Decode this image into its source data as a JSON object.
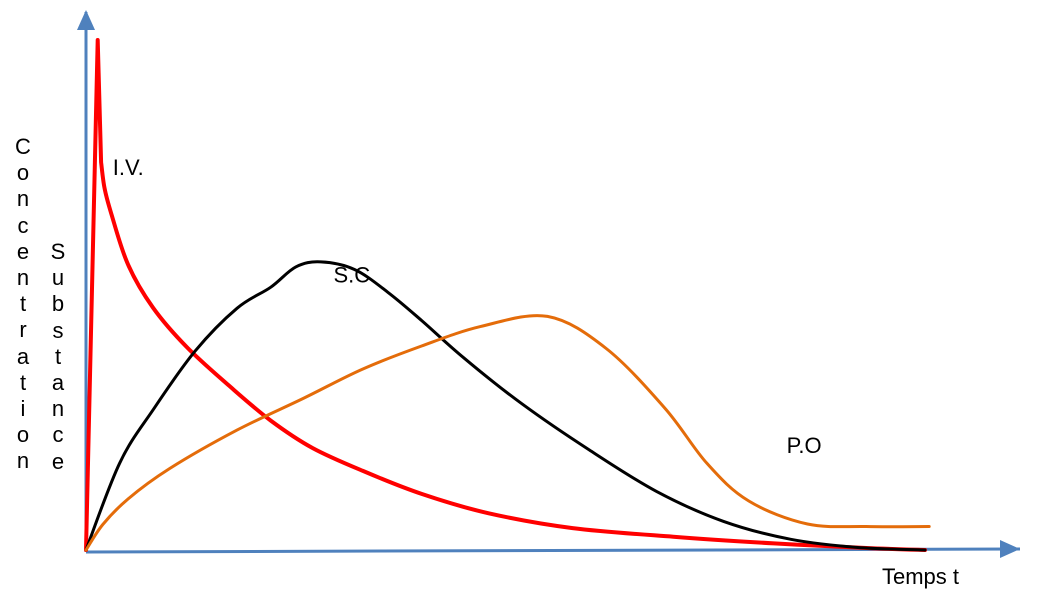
{
  "chart_data": {
    "type": "line",
    "title": "",
    "xlabel": "Temps t",
    "ylabel": "Concentration Substance",
    "ylabel_words": [
      "Concentration",
      "Substance"
    ],
    "grid": false,
    "legend": "none",
    "xlim": [
      0,
      100
    ],
    "ylim": [
      0,
      100
    ],
    "axis_color": "#4F81BD",
    "series": [
      {
        "name": "I.V.",
        "color": "#FF0000",
        "x": [
          0,
          1.4,
          1.8,
          2.2,
          3,
          5,
          8,
          12,
          17,
          22,
          27,
          33,
          40,
          48,
          58,
          70,
          82,
          93,
          100
        ],
        "y": [
          0,
          100,
          76,
          71,
          66,
          56,
          47.5,
          39.8,
          32.3,
          25.4,
          20,
          15.5,
          11,
          7.2,
          4.3,
          2.6,
          1.3,
          0.4,
          0
        ]
      },
      {
        "name": "S.C",
        "color": "#000000",
        "x": [
          0,
          4,
          8,
          13,
          18,
          22,
          25,
          28,
          32,
          36,
          40,
          45,
          52,
          60,
          68,
          76,
          84,
          92,
          100
        ],
        "y": [
          0,
          17,
          27.5,
          39,
          47.4,
          51.5,
          55.5,
          56.5,
          55,
          50.5,
          45,
          37.7,
          28.6,
          19.6,
          11.5,
          5.6,
          2.1,
          0.5,
          0
        ]
      },
      {
        "name": "P.O",
        "color": "#E46C0A",
        "x": [
          0,
          2,
          5,
          10,
          18,
          26,
          33,
          40,
          47,
          55,
          62,
          69,
          74,
          79,
          86,
          93,
          100.5
        ],
        "y": [
          0,
          5,
          10,
          16,
          23.5,
          29.8,
          35.5,
          40,
          43.8,
          45.8,
          39.5,
          27.8,
          17,
          9.6,
          5.1,
          4.6,
          4.6
        ]
      }
    ],
    "annotations": [
      {
        "text": "I.V.",
        "x": 3.2,
        "y": 73.5
      },
      {
        "text": "S.C",
        "x": 29.5,
        "y": 52.5
      },
      {
        "text": "P.O",
        "x": 83.5,
        "y": 19
      }
    ]
  }
}
